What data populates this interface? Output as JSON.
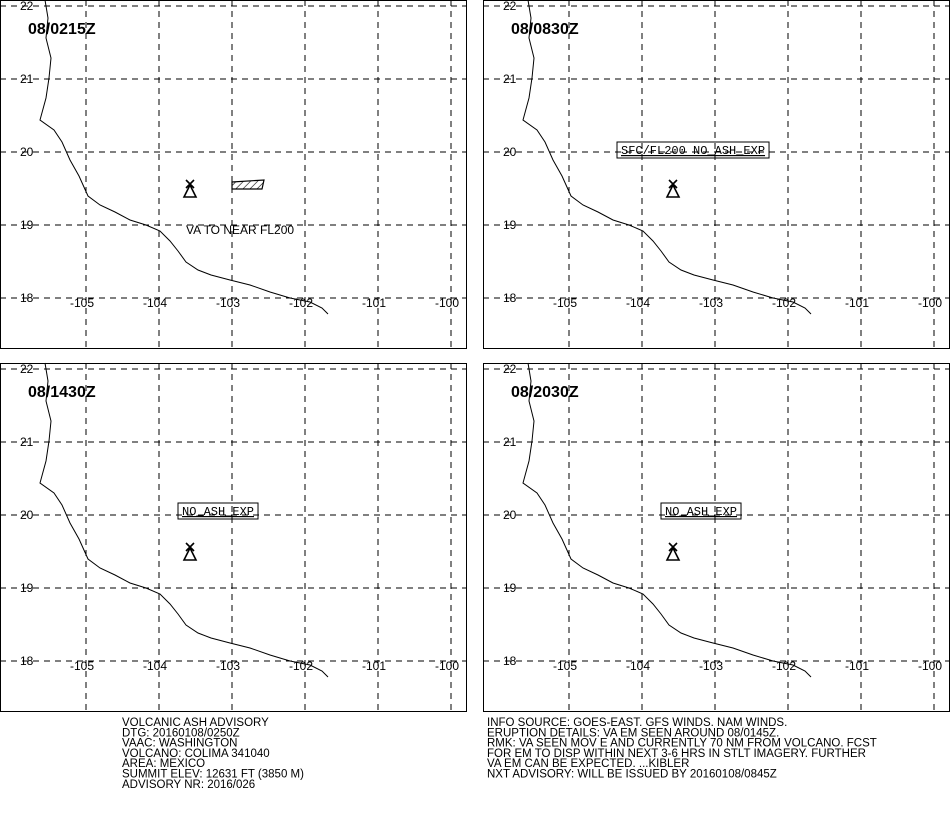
{
  "panels": [
    {
      "time": "08/0215Z",
      "annotation": "VA TO NEAR FL200",
      "boxed": false,
      "ash_area": true
    },
    {
      "time": "08/0830Z",
      "annotation": "SFC/FL200 NO_ASH_EXP",
      "boxed": true,
      "ash_area": false
    },
    {
      "time": "08/1430Z",
      "annotation": "NO_ASH_EXP",
      "boxed": true,
      "ash_area": false
    },
    {
      "time": "08/2030Z",
      "annotation": "NO_ASH_EXP",
      "boxed": true,
      "ash_area": false
    }
  ],
  "lat_ticks": [
    18,
    19,
    20,
    21,
    22
  ],
  "lon_ticks": [
    -105,
    -104,
    -103,
    -102,
    -101,
    -100
  ],
  "advisory_left": [
    "VOLCANIC ASH ADVISORY",
    "DTG: 20160108/0250Z",
    "VAAC: WASHINGTON",
    "VOLCANO: COLIMA 341040",
    "AREA: MEXICO",
    "SUMMIT ELEV: 12631 FT (3850 M)",
    "ADVISORY NR: 2016/026"
  ],
  "advisory_right": [
    "INFO SOURCE: GOES-EAST. GFS WINDS. NAM WINDS.",
    "ERUPTION DETAILS: VA EM SEEN AROUND 08/0145Z.",
    "RMK: VA SEEN MOV E AND CURRENTLY 70 NM FROM VOLCANO. FCST",
    "FOR EM TO DISP WITHIN NEXT 3-6 HRS IN STLT IMAGERY. FURTHER",
    "VA EM CAN BE EXPECTED. ...KIBLER",
    "NXT ADVISORY: WILL BE ISSUED BY 20160108/0845Z"
  ]
}
